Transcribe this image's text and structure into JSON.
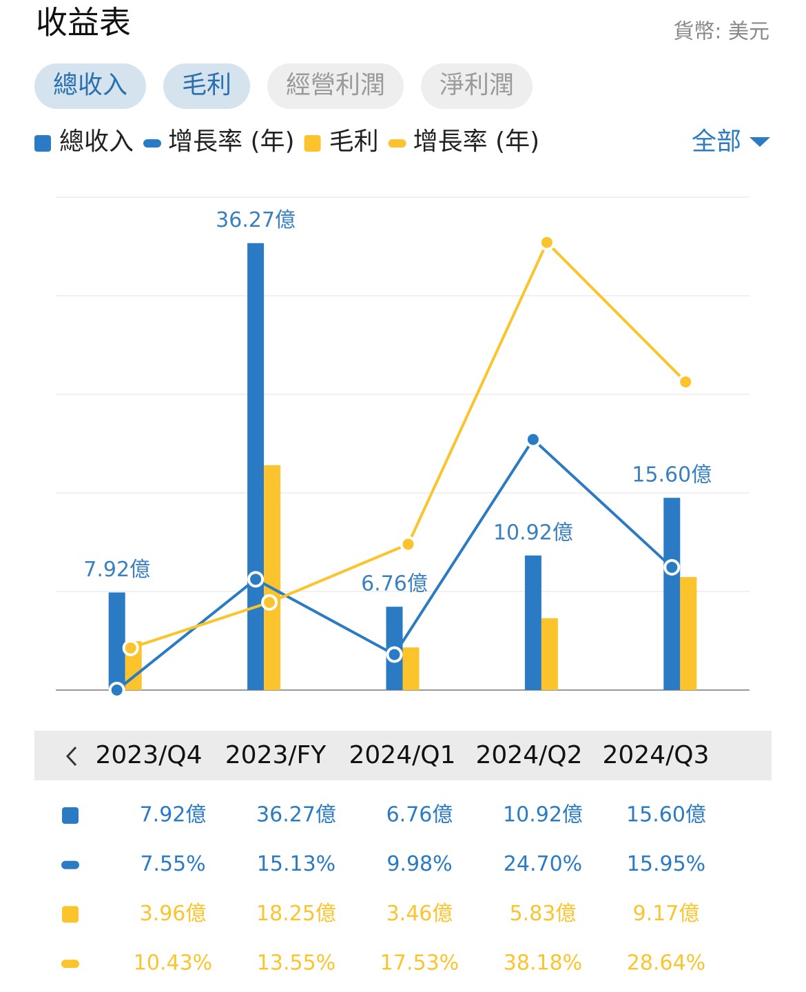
{
  "title": "收益表",
  "currency": "貨幣: 美元",
  "filter": "全部",
  "tabs": [
    {
      "label": "總收入",
      "selected": true
    },
    {
      "label": "毛利",
      "selected": true
    },
    {
      "label": "經營利潤",
      "selected": false
    },
    {
      "label": "淨利潤",
      "selected": false
    }
  ],
  "chart_data": {
    "type": "bar",
    "categories": [
      "2023/Q4",
      "2023/FY",
      "2024/Q1",
      "2024/Q2",
      "2024/Q3"
    ],
    "ylim": [
      0,
      40
    ],
    "yticks": [
      0,
      8,
      16,
      24,
      32,
      40
    ],
    "grid": true,
    "y2lim": [
      7.55,
      41.28
    ],
    "series": [
      {
        "name": "總收入",
        "type": "bar",
        "color": "#2a7bc4",
        "values": [
          7.92,
          36.27,
          6.76,
          10.92,
          15.6
        ],
        "value_labels": [
          "7.92億",
          "36.27億",
          "6.76億",
          "10.92億",
          "15.60億"
        ]
      },
      {
        "name": "增長率 (年)",
        "type": "line",
        "axis": "y2",
        "color": "#2a7bc4",
        "values": [
          7.55,
          15.13,
          9.98,
          24.7,
          15.95
        ],
        "value_labels": [
          "7.55%",
          "15.13%",
          "9.98%",
          "24.70%",
          "15.95%"
        ]
      },
      {
        "name": "毛利",
        "type": "bar",
        "color": "#fbc42d",
        "values": [
          3.96,
          18.25,
          3.46,
          5.83,
          9.17
        ],
        "value_labels": [
          "3.96億",
          "18.25億",
          "3.46億",
          "5.83億",
          "9.17億"
        ]
      },
      {
        "name": "增長率 (年)",
        "type": "line",
        "axis": "y2",
        "color": "#fbc42d",
        "values": [
          10.43,
          13.55,
          17.53,
          38.18,
          28.64
        ],
        "value_labels": [
          "10.43%",
          "13.55%",
          "17.53%",
          "38.18%",
          "28.64%"
        ]
      }
    ]
  }
}
